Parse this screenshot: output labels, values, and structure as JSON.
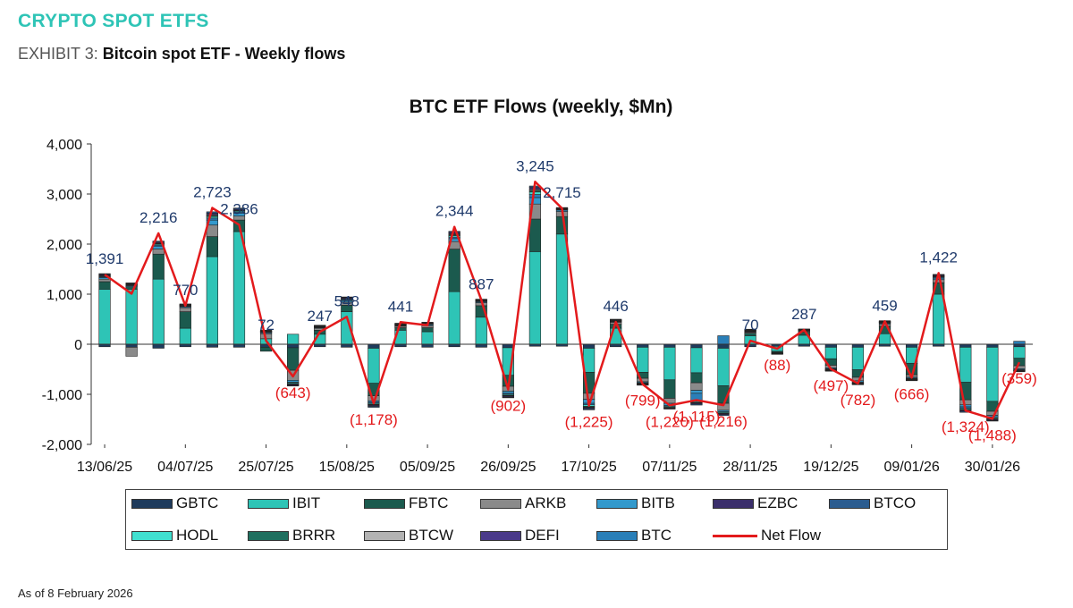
{
  "header": {
    "section_title": "CRYPTO SPOT ETFS",
    "exhibit_prefix": "EXHIBIT 3:",
    "exhibit_title": "Bitcoin spot ETF - Weekly flows"
  },
  "footnote": "As of 8 February 2026",
  "colors": {
    "GBTC": "#1f3b5c",
    "IBIT": "#2ec4b6",
    "FBTC": "#1b5a4e",
    "ARKB": "#8a8a8a",
    "BITB": "#3399cc",
    "EZBC": "#3b2f6b",
    "BTCO": "#2b5c8f",
    "HODL": "#40e0d0",
    "BRRR": "#1f6f5f",
    "BTCW": "#b3b3b3",
    "DEFI": "#4a3a8a",
    "BTC": "#2a7fb8",
    "net_flow": "#e31a1c",
    "net_label_pos": "#1f3a6b",
    "net_label_neg": "#e31a1c"
  },
  "chart_data": {
    "type": "bar",
    "stacked": true,
    "title": "BTC ETF Flows (weekly, $Mn)",
    "xlabel": "",
    "ylabel": "",
    "ylim": [
      -2000,
      4000
    ],
    "yticks": [
      -2000,
      -1000,
      0,
      1000,
      2000,
      3000,
      4000
    ],
    "ytick_labels": [
      "-2,000",
      "-1,000",
      "0",
      "1,000",
      "2,000",
      "3,000",
      "4,000"
    ],
    "x_tick_labels": [
      "13/06/25",
      "04/07/25",
      "25/07/25",
      "15/08/25",
      "05/09/25",
      "26/09/25",
      "17/10/25",
      "07/11/25",
      "28/11/25",
      "19/12/25",
      "09/01/26",
      "30/01/26"
    ],
    "legend": [
      "GBTC",
      "IBIT",
      "FBTC",
      "ARKB",
      "BITB",
      "EZBC",
      "BTCO",
      "HODL",
      "BRRR",
      "BTCW",
      "DEFI",
      "BTC",
      "Net Flow"
    ],
    "legend_position": "bottom",
    "net_flow": [
      1391,
      1010,
      2216,
      770,
      2723,
      2386,
      72,
      -643,
      247,
      548,
      -1178,
      441,
      380,
      2344,
      887,
      -902,
      3245,
      2715,
      -1225,
      446,
      -799,
      -1220,
      -1115,
      -1216,
      70,
      -88,
      287,
      -497,
      -782,
      459,
      -666,
      1422,
      -1324,
      -1488,
      -359
    ],
    "net_flow_labels": [
      "1,391",
      "",
      "2,216",
      "770",
      "2,723",
      "2,386",
      "72",
      "(643)",
      "247",
      "548",
      "(1,178)",
      "441",
      "",
      "2,344",
      "887",
      "(902)",
      "3,245",
      "2,715",
      "(1,225)",
      "446",
      "(799)",
      "(1,220)",
      "(1,115)",
      "(1,216)",
      "70",
      "(88)",
      "287",
      "(497)",
      "(782)",
      "459",
      "(666)",
      "1,422",
      "(1,324)",
      "(1,488)",
      "(359)"
    ],
    "series": [
      {
        "name": "GBTC",
        "values": [
          -50,
          -60,
          -80,
          -50,
          -60,
          -60,
          -60,
          -70,
          -50,
          -60,
          -80,
          -50,
          -60,
          -50,
          -60,
          -70,
          -40,
          -40,
          -80,
          -50,
          -60,
          -60,
          -70,
          -80,
          -50,
          -40,
          -40,
          -60,
          -60,
          -40,
          -60,
          -40,
          -60,
          -60,
          -50
        ]
      },
      {
        "name": "IBIT",
        "values": [
          1100,
          1100,
          1300,
          320,
          1750,
          2250,
          110,
          200,
          200,
          650,
          -700,
          280,
          250,
          1050,
          540,
          -550,
          1850,
          2200,
          -480,
          320,
          -500,
          -650,
          -500,
          -750,
          170,
          -100,
          180,
          -230,
          -450,
          210,
          -320,
          1000,
          -700,
          -1080,
          -230
        ]
      },
      {
        "name": "FBTC",
        "values": [
          150,
          50,
          500,
          330,
          400,
          230,
          -80,
          -450,
          80,
          130,
          -250,
          50,
          80,
          850,
          230,
          -220,
          650,
          350,
          -420,
          80,
          -120,
          -370,
          -200,
          -350,
          50,
          -20,
          60,
          -130,
          -150,
          150,
          -230,
          230,
          -350,
          -200,
          -150
        ]
      },
      {
        "name": "ARKB",
        "values": [
          50,
          -180,
          100,
          80,
          230,
          80,
          100,
          -200,
          40,
          60,
          -100,
          30,
          40,
          150,
          60,
          -100,
          300,
          100,
          -120,
          40,
          -70,
          -100,
          -150,
          -140,
          20,
          -10,
          20,
          -50,
          -70,
          40,
          -50,
          60,
          -100,
          -80,
          -60
        ]
      },
      {
        "name": "BITB",
        "values": [
          30,
          20,
          60,
          20,
          100,
          60,
          20,
          -40,
          10,
          30,
          -30,
          10,
          20,
          60,
          20,
          -40,
          130,
          30,
          -80,
          10,
          -20,
          -40,
          -60,
          -30,
          10,
          -5,
          10,
          -20,
          -30,
          20,
          -20,
          30,
          -40,
          -30,
          -20
        ]
      },
      {
        "name": "BTC",
        "values": [
          20,
          10,
          20,
          10,
          40,
          20,
          10,
          -10,
          10,
          20,
          -20,
          10,
          10,
          30,
          10,
          -20,
          60,
          10,
          -30,
          10,
          -10,
          -20,
          -160,
          170,
          10,
          0,
          10,
          -10,
          -10,
          10,
          -10,
          20,
          -30,
          -20,
          60
        ]
      },
      {
        "name": "HODL",
        "values": [
          10,
          10,
          20,
          10,
          30,
          20,
          10,
          -20,
          10,
          10,
          -20,
          10,
          10,
          30,
          10,
          -20,
          50,
          10,
          -30,
          10,
          -10,
          -20,
          -20,
          -20,
          10,
          -5,
          5,
          -10,
          -10,
          10,
          -10,
          10,
          -20,
          -20,
          -10
        ]
      },
      {
        "name": "BRRR",
        "values": [
          10,
          10,
          10,
          10,
          20,
          10,
          5,
          -10,
          5,
          10,
          -10,
          5,
          5,
          20,
          5,
          -10,
          30,
          5,
          -20,
          5,
          -5,
          -10,
          -10,
          -10,
          5,
          -5,
          5,
          -5,
          -5,
          5,
          -5,
          10,
          -10,
          -10,
          -5
        ]
      },
      {
        "name": "BTCW",
        "values": [
          10,
          5,
          10,
          5,
          15,
          10,
          5,
          -5,
          5,
          5,
          -10,
          5,
          5,
          15,
          5,
          -10,
          20,
          5,
          -10,
          5,
          -5,
          -5,
          -5,
          -5,
          5,
          -3,
          5,
          -5,
          -5,
          5,
          -5,
          5,
          -10,
          -5,
          -5
        ]
      },
      {
        "name": "EZBC",
        "values": [
          20,
          10,
          20,
          10,
          30,
          20,
          10,
          -20,
          10,
          20,
          -20,
          10,
          10,
          30,
          10,
          -20,
          40,
          10,
          -20,
          10,
          -10,
          -10,
          -20,
          -20,
          10,
          -5,
          5,
          -10,
          -10,
          10,
          -10,
          20,
          -20,
          -20,
          -10
        ]
      },
      {
        "name": "BTCO",
        "values": [
          10,
          10,
          20,
          10,
          30,
          20,
          10,
          -10,
          10,
          10,
          -20,
          10,
          10,
          20,
          10,
          -10,
          30,
          10,
          -20,
          10,
          -5,
          -10,
          -20,
          -20,
          10,
          -5,
          5,
          -5,
          -5,
          10,
          -5,
          10,
          -20,
          -10,
          -10
        ]
      },
      {
        "name": "DEFI",
        "values": [
          0,
          0,
          0,
          0,
          0,
          0,
          0,
          0,
          0,
          0,
          0,
          0,
          0,
          0,
          0,
          0,
          0,
          0,
          0,
          0,
          0,
          0,
          0,
          0,
          0,
          0,
          0,
          0,
          0,
          0,
          0,
          0,
          0,
          0,
          0
        ]
      }
    ]
  }
}
